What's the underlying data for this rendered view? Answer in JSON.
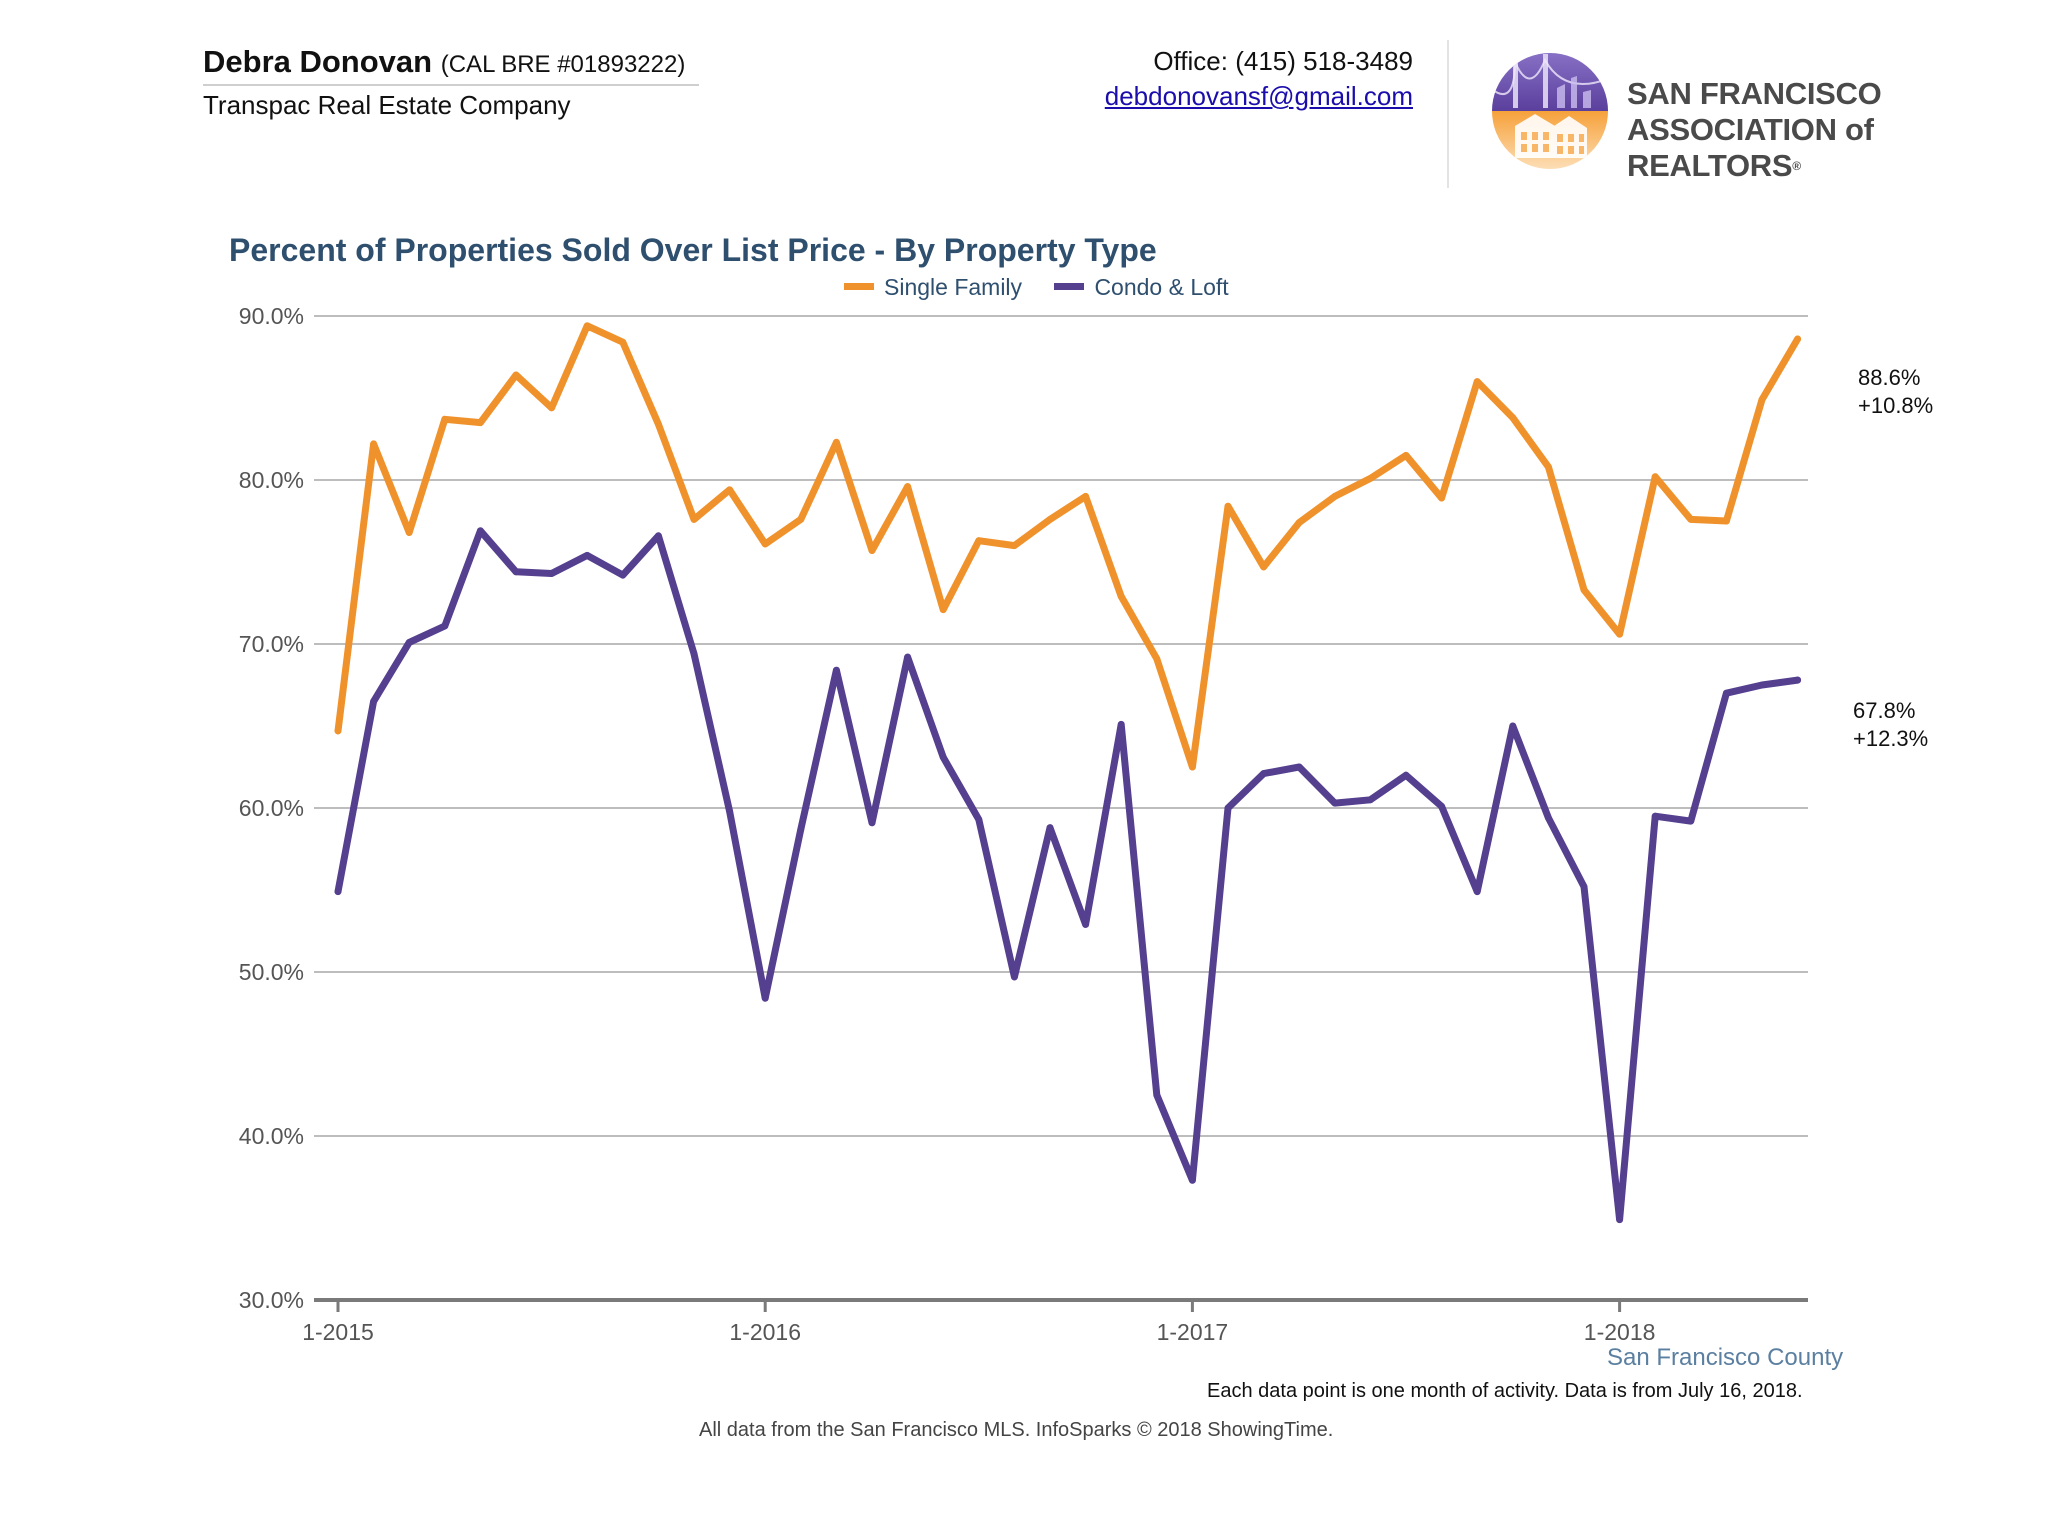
{
  "header": {
    "agent_name": "Debra Donovan",
    "agent_license": "(CAL BRE #01893222)",
    "company": "Transpac Real Estate Company",
    "office_phone": "Office: (415) 518-3489",
    "email": "debdonovansf@gmail.com",
    "logo_line1": "SAN FRANCISCO",
    "logo_line2": "ASSOCIATION of REALTORS",
    "logo_reg": "®"
  },
  "colors": {
    "single_family": "#f0922c",
    "condo_loft": "#553f8f",
    "title": "#2f4f6f",
    "grid": "#bdbdbd",
    "axis": "#7a7a7a"
  },
  "chart_data": {
    "type": "line",
    "title": "Percent of Properties Sold Over List Price - By Property Type",
    "xlabel": "",
    "ylabel": "",
    "ylim": [
      30,
      90
    ],
    "yticks": [
      "90.0%",
      "80.0%",
      "70.0%",
      "60.0%",
      "50.0%",
      "40.0%",
      "30.0%"
    ],
    "ytick_values": [
      90,
      80,
      70,
      60,
      50,
      40,
      30
    ],
    "xticks": [
      "1-2015",
      "1-2016",
      "1-2017",
      "1-2018"
    ],
    "xtick_month_index": [
      0,
      12,
      24,
      36
    ],
    "grid": true,
    "legend_position": "top-center",
    "x": [
      "2015-01",
      "2015-02",
      "2015-03",
      "2015-04",
      "2015-05",
      "2015-06",
      "2015-07",
      "2015-08",
      "2015-09",
      "2015-10",
      "2015-11",
      "2015-12",
      "2016-01",
      "2016-02",
      "2016-03",
      "2016-04",
      "2016-05",
      "2016-06",
      "2016-07",
      "2016-08",
      "2016-09",
      "2016-10",
      "2016-11",
      "2016-12",
      "2017-01",
      "2017-02",
      "2017-03",
      "2017-04",
      "2017-05",
      "2017-06",
      "2017-07",
      "2017-08",
      "2017-09",
      "2017-10",
      "2017-11",
      "2017-12",
      "2018-01",
      "2018-02",
      "2018-03",
      "2018-04",
      "2018-05",
      "2018-06"
    ],
    "series": [
      {
        "name": "Single Family",
        "values": [
          64.7,
          82.2,
          76.8,
          83.7,
          83.5,
          86.4,
          84.4,
          89.4,
          88.4,
          83.4,
          77.6,
          79.4,
          76.1,
          77.6,
          82.3,
          75.7,
          79.6,
          72.1,
          76.3,
          76.0,
          77.6,
          79.0,
          72.9,
          69.1,
          62.5,
          78.4,
          74.7,
          77.4,
          79.0,
          80.1,
          81.5,
          78.9,
          86.0,
          83.8,
          80.8,
          73.3,
          70.6,
          80.2,
          77.6,
          77.5,
          84.9,
          88.6
        ],
        "end_label": "88.6%",
        "end_change": "+10.8%"
      },
      {
        "name": "Condo & Loft",
        "values": [
          54.9,
          66.5,
          70.1,
          71.1,
          76.9,
          74.4,
          74.3,
          75.4,
          74.2,
          76.6,
          69.4,
          59.8,
          48.4,
          58.7,
          68.4,
          59.1,
          69.2,
          63.1,
          59.3,
          49.7,
          58.8,
          52.9,
          65.1,
          42.5,
          37.3,
          60.0,
          62.1,
          62.5,
          60.3,
          60.5,
          62.0,
          60.1,
          54.9,
          65.0,
          59.4,
          55.2,
          34.9,
          59.5,
          59.2,
          67.0,
          67.5,
          67.8
        ],
        "end_label": "67.8%",
        "end_change": "+12.3%"
      }
    ]
  },
  "footer": {
    "county": "San Francisco County",
    "note": "Each data point is one month of activity. Data is from July 16, 2018.",
    "source": "All data from the San Francisco MLS. InfoSparks © 2018 ShowingTime."
  }
}
